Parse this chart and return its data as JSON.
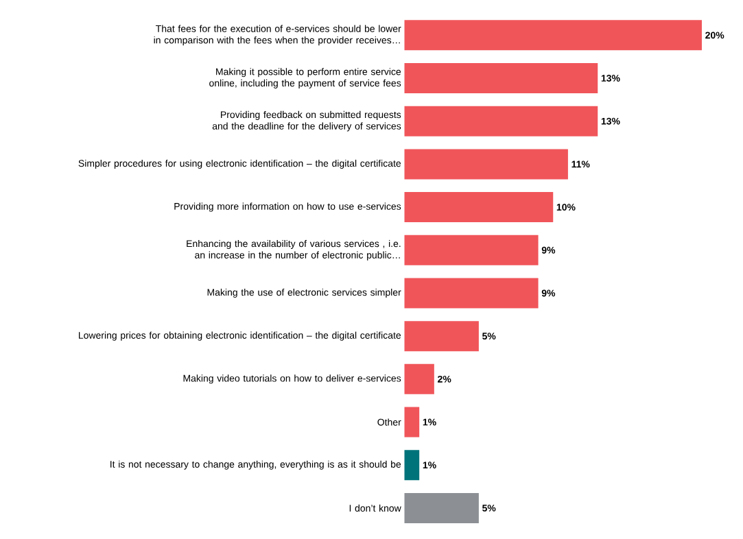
{
  "chart_data": {
    "type": "bar",
    "orientation": "horizontal",
    "categories": [
      "That fees for the execution of e-services should be lower in comparison with the fees when the provider receives…",
      "Making it possible to perform entire service online, including the payment of service fees",
      "Providing feedback on submitted requests and the deadline for the delivery of services",
      "Simpler procedures for using electronic identification – the digital certificate",
      "Providing more information on how to use e-services",
      "Enhancing the availability of various services , i.e. an increase in the number of electronic public…",
      "Making the use of electronic services simpler",
      "Lowering prices for obtaining electronic identification – the digital certificate",
      "Making video tutorials on how to deliver e-services",
      "Other",
      "It is not necessary to change anything, everything is as it should be",
      "I don’t know"
    ],
    "values": [
      20,
      13,
      13,
      11,
      10,
      9,
      9,
      5,
      2,
      1,
      1,
      5
    ],
    "value_labels": [
      "20%",
      "13%",
      "13%",
      "11%",
      "10%",
      "9%",
      "9%",
      "5%",
      "2%",
      "1%",
      "1%",
      "5%"
    ],
    "colors": [
      "#f0555a",
      "#f0555a",
      "#f0555a",
      "#f0555a",
      "#f0555a",
      "#f0555a",
      "#f0555a",
      "#f0555a",
      "#f0555a",
      "#f0555a",
      "#00737a",
      "#8c8f93"
    ]
  }
}
